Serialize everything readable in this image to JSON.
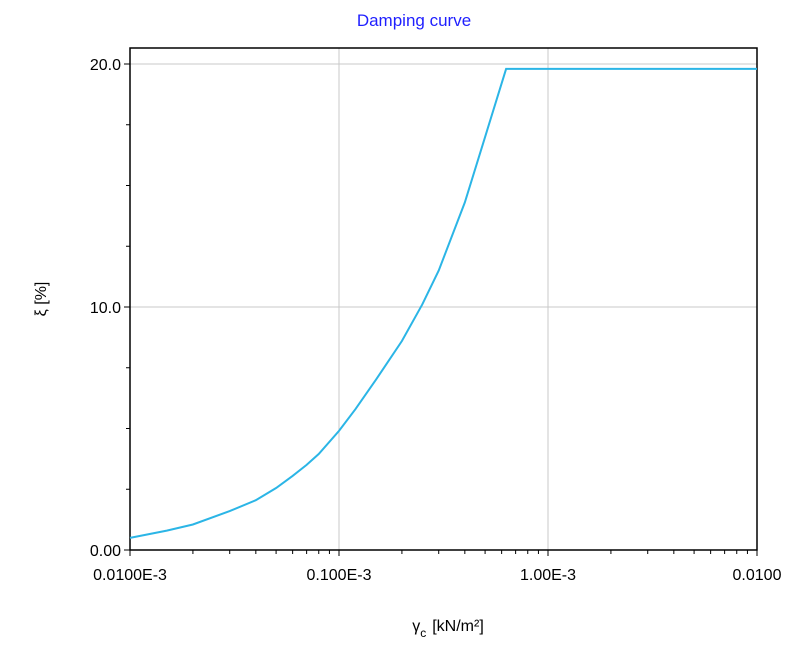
{
  "chart_data": {
    "type": "line",
    "title": "Damping curve",
    "title_color": "#1f1fff",
    "xlabel": {
      "symbol": "γ",
      "subscript": "c",
      "unit": "[kN/m²]"
    },
    "ylabel": "ξ [%]",
    "x_scale": "log",
    "xlim": [
      1e-05,
      0.01
    ],
    "ylim": [
      0,
      20
    ],
    "x_tick_labels": [
      {
        "value": 1e-05,
        "label": "0.0100E-3"
      },
      {
        "value": 0.0001,
        "label": "0.100E-3"
      },
      {
        "value": 0.001,
        "label": "1.00E-3"
      },
      {
        "value": 0.01,
        "label": "0.0100"
      }
    ],
    "y_tick_labels": [
      {
        "value": 0,
        "label": "0.00"
      },
      {
        "value": 10,
        "label": "10.0"
      },
      {
        "value": 20,
        "label": "20.0"
      }
    ],
    "grid": true,
    "line_color": "#2bb5e6",
    "series": [
      {
        "x": [
          1e-05,
          1.5e-05,
          2e-05,
          3e-05,
          4e-05,
          5e-05,
          6e-05,
          7e-05,
          8e-05,
          0.0001,
          0.00012,
          0.00015,
          0.0002,
          0.00025,
          0.0003,
          0.0004,
          0.0005,
          0.00063,
          0.001,
          0.002,
          0.005,
          0.01
        ],
        "y": [
          0.5,
          0.8,
          1.05,
          1.6,
          2.05,
          2.55,
          3.05,
          3.5,
          3.95,
          4.9,
          5.8,
          7.0,
          8.6,
          10.1,
          11.5,
          14.3,
          17.0,
          19.8,
          19.8,
          19.8,
          19.8,
          19.8
        ]
      }
    ]
  }
}
